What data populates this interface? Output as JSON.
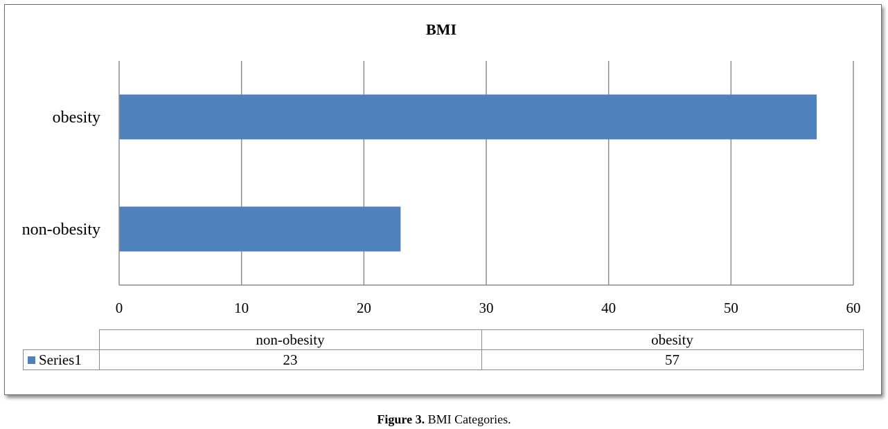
{
  "chart_data": {
    "type": "bar",
    "orientation": "horizontal",
    "title": "BMI",
    "categories": [
      "non-obesity",
      "obesity"
    ],
    "series": [
      {
        "name": "Series1",
        "values": [
          23,
          57
        ],
        "color": "#4f81bd"
      }
    ],
    "xlim": [
      0,
      60
    ],
    "x_ticks": [
      "0",
      "10",
      "20",
      "30",
      "40",
      "50",
      "60"
    ],
    "grid": true,
    "legend": "data-table"
  },
  "data_table": {
    "headers": [
      "non-obesity",
      "obesity"
    ],
    "rows": [
      {
        "series": "Series1",
        "values": [
          "23",
          "57"
        ]
      }
    ]
  },
  "caption": {
    "label": "Figure 3.",
    "text": " BMI Categories."
  }
}
